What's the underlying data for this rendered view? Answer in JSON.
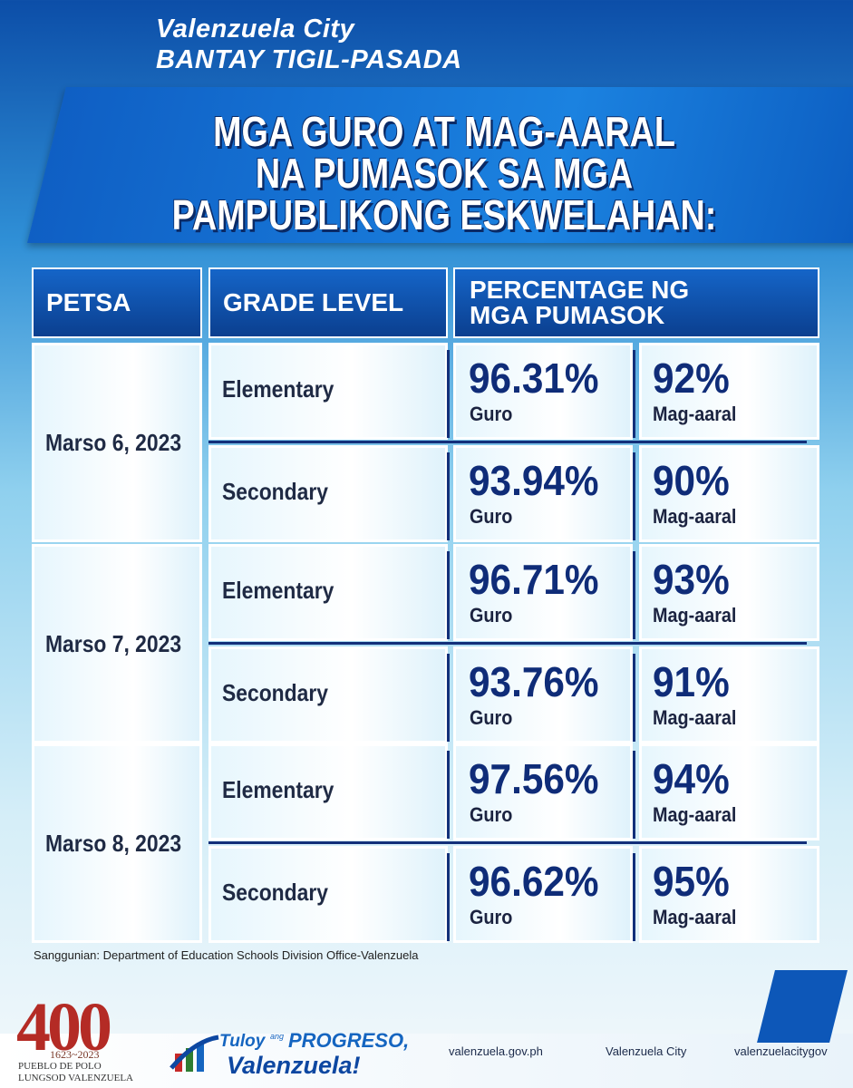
{
  "header": {
    "city": "Valenzuela City",
    "program": "BANTAY TIGIL-PASADA",
    "title": [
      "MGA GURO AT MAG-AARAL",
      "NA PUMASOK SA MGA",
      "PAMPUBLIKONG ESKWELAHAN:"
    ]
  },
  "table": {
    "headers": [
      "PETSA",
      "GRADE LEVEL",
      "PERCENTAGE NG MGA PUMASOK"
    ],
    "rows": [
      {
        "date": "Marso 6, 2023",
        "entries": [
          {
            "level": "Elementary",
            "teachers": "96.31%",
            "teachers_label": "Guro",
            "students": "92%",
            "students_label": "Mag-aaral"
          },
          {
            "level": "Secondary",
            "teachers": "93.94%",
            "teachers_label": "Guro",
            "students": "90%",
            "students_label": "Mag-aaral"
          }
        ]
      },
      {
        "date": "Marso 7, 2023",
        "entries": [
          {
            "level": "Elementary",
            "teachers": "96.71%",
            "teachers_label": "Guro",
            "students": "93%",
            "students_label": "Mag-aaral"
          },
          {
            "level": "Secondary",
            "teachers": "93.76%",
            "teachers_label": "Guro",
            "students": "91%",
            "students_label": "Mag-aaral"
          }
        ]
      },
      {
        "date": "Marso 8, 2023",
        "entries": [
          {
            "level": "Elementary",
            "teachers": "97.56%",
            "teachers_label": "Guro",
            "students": "94%",
            "students_label": "Mag-aaral"
          },
          {
            "level": "Secondary",
            "teachers": "96.62%",
            "teachers_label": "Guro",
            "students": "95%",
            "students_label": "Mag-aaral"
          }
        ]
      }
    ]
  },
  "source": "Sanggunian: Department of Education Schools Division Office-Valenzuela",
  "footer": {
    "logo_number": "400",
    "logo_years": "1623~2023",
    "logo_line1": "PUEBLO DE POLO",
    "logo_line2": "LUNGSOD VALENZUELA",
    "slogan_1": "Tuloy",
    "slogan_2": "ang",
    "slogan_3": "PROGRESO,",
    "slogan_4": "Valenzuela!",
    "website": "valenzuela.gov.ph",
    "facebook": "Valenzuela City",
    "social": "valenzuelacitygov"
  }
}
